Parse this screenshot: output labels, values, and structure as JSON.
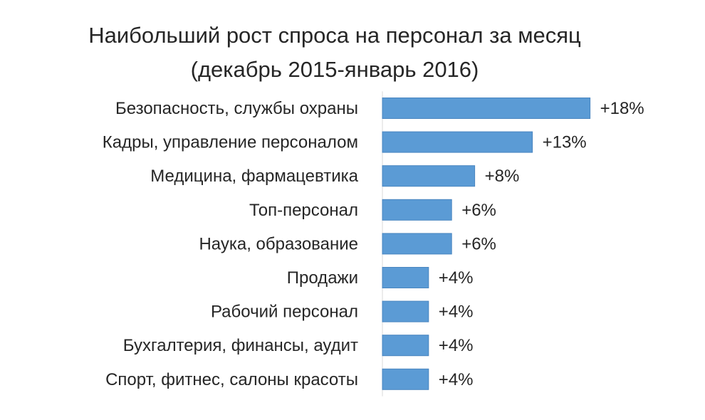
{
  "chart_data": {
    "type": "bar",
    "orientation": "horizontal",
    "title": "Наибольший рост спроса на персонал за месяц",
    "subtitle": "(декабрь 2015-январь 2016)",
    "categories": [
      "Безопасность, службы охраны",
      "Кадры, управление персоналом",
      "Медицина, фармацевтика",
      "Топ-персонал",
      "Наука, образование",
      "Продажи",
      "Рабочий персонал",
      "Бухгалтерия, финансы, аудит",
      "Спорт, фитнес, салоны красоты"
    ],
    "values": [
      18,
      13,
      8,
      6,
      6,
      4,
      4,
      4,
      4
    ],
    "data_labels": [
      "+18%",
      "+13%",
      "+8%",
      "+6%",
      "+6%",
      "+4%",
      "+4%",
      "+4%",
      "+4%"
    ],
    "bar_color": "#5b9bd5",
    "bar_border_color": "#4a86c0",
    "xlabel": "",
    "ylabel": "",
    "grid": false,
    "legend": "none"
  }
}
